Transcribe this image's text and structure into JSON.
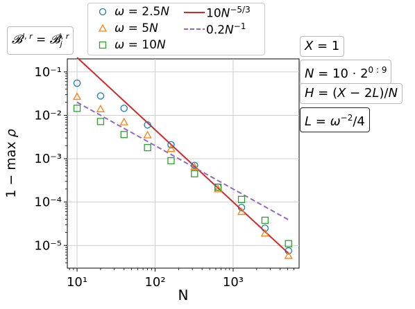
{
  "chart_data": {
    "type": "scatter",
    "xlabel": "N",
    "ylabel": "1 − max ρ",
    "x_scale": "log",
    "y_scale": "log",
    "xlim": [
      7.5,
      7000
    ],
    "ylim": [
      3e-06,
      0.2
    ],
    "grid": true,
    "x_ticks": [
      {
        "value": 10,
        "label": "10¹"
      },
      {
        "value": 100,
        "label": "10²"
      },
      {
        "value": 1000,
        "label": "10³"
      }
    ],
    "y_ticks": [
      {
        "value": 0.1,
        "label": "10⁻¹"
      },
      {
        "value": 0.01,
        "label": "10⁻²"
      },
      {
        "value": 0.001,
        "label": "10⁻³"
      },
      {
        "value": 0.0001,
        "label": "10⁻⁴"
      },
      {
        "value": 1e-05,
        "label": "10⁻⁵"
      }
    ],
    "series": [
      {
        "name": "ω = 2.5N",
        "marker": "circle",
        "color": "#1f77b4",
        "x": [
          10,
          20,
          40,
          80,
          160,
          320,
          640,
          1280,
          2560,
          5120
        ],
        "y": [
          0.055,
          0.028,
          0.0145,
          0.006,
          0.0021,
          0.0007,
          0.00022,
          7.5e-05,
          2.5e-05,
          7.5e-06
        ]
      },
      {
        "name": "ω = 5N",
        "marker": "triangle",
        "color": "#ff7f0e",
        "x": [
          10,
          20,
          40,
          80,
          160,
          320,
          640,
          1280,
          2560,
          5120
        ],
        "y": [
          0.027,
          0.014,
          0.007,
          0.0035,
          0.0017,
          0.00065,
          0.0002,
          6e-05,
          1.9e-05,
          5.8e-06
        ]
      },
      {
        "name": "ω = 10N",
        "marker": "square",
        "color": "#2ca02c",
        "x": [
          10,
          20,
          40,
          80,
          160,
          320,
          640,
          1280,
          2560,
          5120
        ],
        "y": [
          0.0145,
          0.0072,
          0.0036,
          0.0018,
          0.0009,
          0.00045,
          0.00022,
          0.000115,
          3.8e-05,
          1.1e-05
        ]
      },
      {
        "name": "10N^{-5/3}",
        "line": "solid",
        "color": "#d62728",
        "coef": 10,
        "power": -1.6667,
        "x_range": [
          10,
          5120
        ]
      },
      {
        "name": "0.2N^{-1}",
        "line": "dashed",
        "color": "#9467bd",
        "coef": 0.2,
        "power": -1,
        "x_range": [
          10,
          5120
        ]
      }
    ]
  },
  "legend": {
    "labels": [
      "ω = 2.5N",
      "ω = 5N",
      "ω = 10N",
      "10N^{−5/3}",
      "0.2N^{−1}"
    ]
  },
  "annotations": {
    "top_left": "B^{l,r} = B_j^{l,r}",
    "x": "X = 1",
    "n": "N = 10 · 2^{0 : 9}",
    "h": "H = (X − 2L)/N",
    "l": "L = ω^{−2}/4"
  }
}
